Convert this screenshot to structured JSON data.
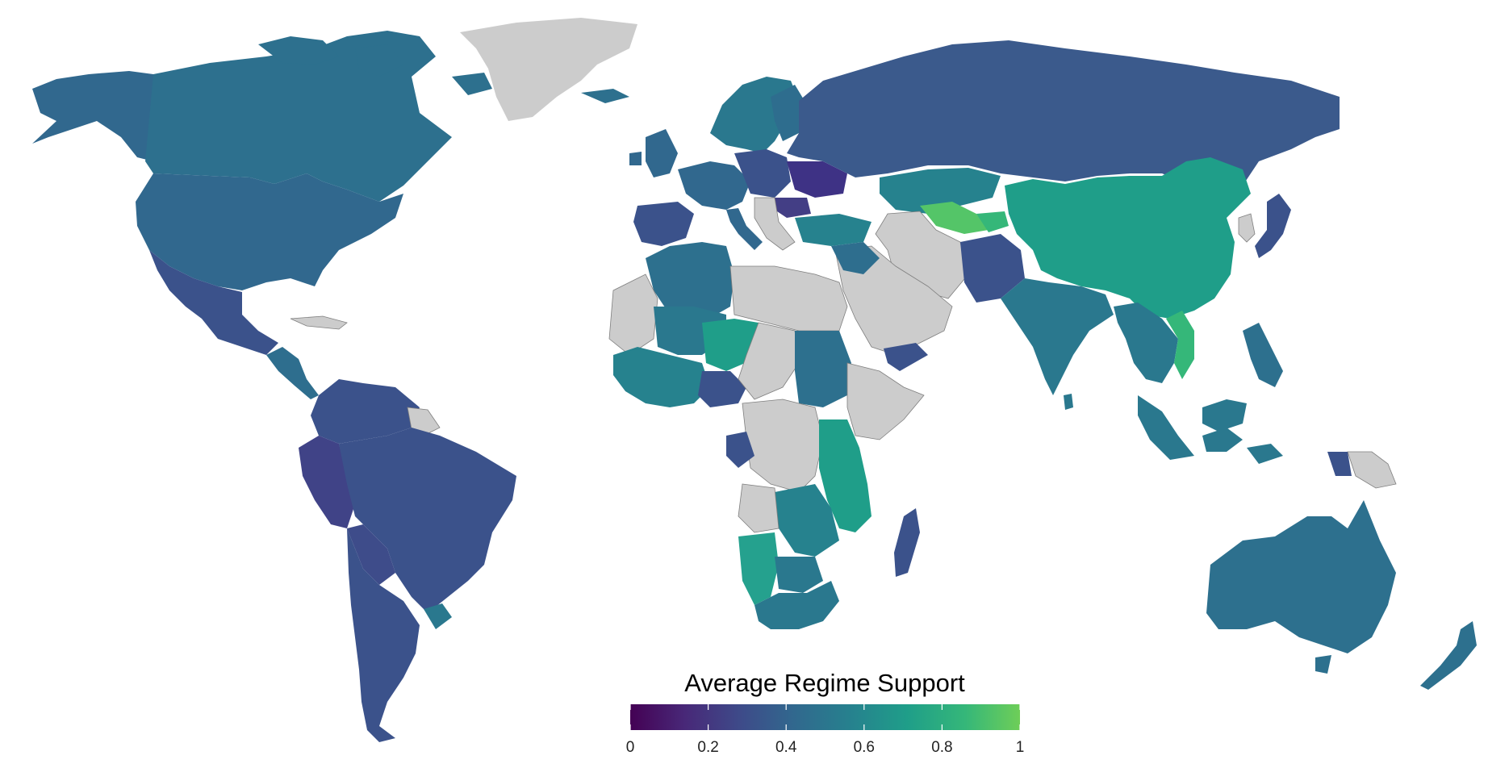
{
  "legend": {
    "title": "Average Regime Support",
    "ticks": [
      "0",
      "0.2",
      "0.4",
      "0.6",
      "0.8",
      "1"
    ],
    "tick_values": [
      0,
      0.2,
      0.4,
      0.6,
      0.8,
      1
    ],
    "range": [
      0,
      1
    ],
    "colormap": "viridis",
    "stops": [
      "#440154",
      "#482878",
      "#3e4a89",
      "#31688e",
      "#26828e",
      "#1f9e89",
      "#35b779",
      "#6ece58"
    ],
    "no_data_color": "#cccccc"
  }
}
